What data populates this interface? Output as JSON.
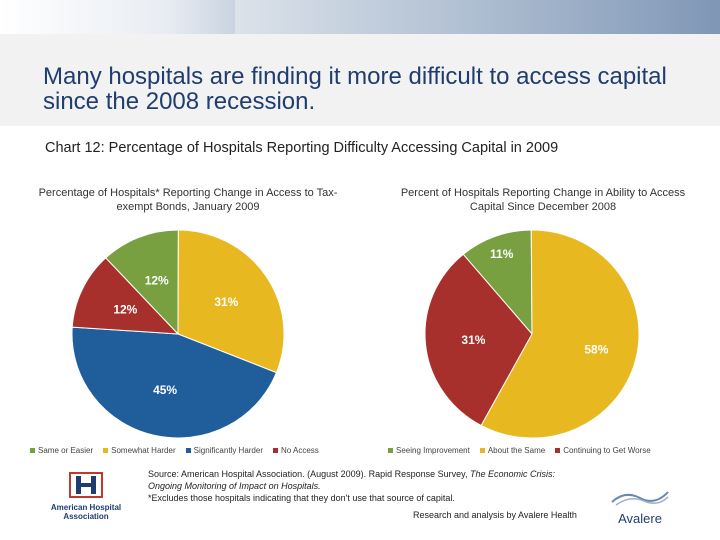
{
  "slide": {
    "title": "Many hospitals are finding it more difficult to access capital since the 2008 recession.",
    "subtitle": "Chart 12: Percentage of Hospitals Reporting Difficulty Accessing Capital in 2009",
    "source_line1_a": "Source: American Hospital Association.  (August 2009). Rapid Response Survey,",
    "source_line1_b": "The Economic Crisis: Ongoing Monitoring of Impact on Hospitals.",
    "source_line2": "*Excludes those hospitals indicating that they don't use that source of capital.",
    "analysis": "Research and analysis by Avalere Health",
    "aha_logo_text": "American Hospital Association",
    "avalere_logo_text": "Avalere"
  },
  "chart_data": [
    {
      "type": "pie",
      "title": "Percentage of Hospitals* Reporting Change in Access to Tax-exempt Bonds, January 2009",
      "categories": [
        "Same or Easier",
        "Somewhat Harder",
        "Significantly Harder",
        "No Access"
      ],
      "values": [
        12,
        31,
        45,
        12
      ],
      "labels": [
        "12%",
        "31%",
        "45%",
        "12%"
      ],
      "colors": [
        "#78a040",
        "#e8b820",
        "#1f5e9a",
        "#a8302c"
      ],
      "legend": "bottom"
    },
    {
      "type": "pie",
      "title": "Percent of Hospitals Reporting Change in Ability to Access Capital Since December 2008",
      "categories": [
        "Seeing Improvement",
        "About the Same",
        "Continuing to Get Worse"
      ],
      "values": [
        11,
        58,
        31
      ],
      "labels": [
        "11%",
        "58%",
        "31%"
      ],
      "colors": [
        "#78a040",
        "#e8b820",
        "#a8302c"
      ],
      "legend": "bottom"
    }
  ]
}
